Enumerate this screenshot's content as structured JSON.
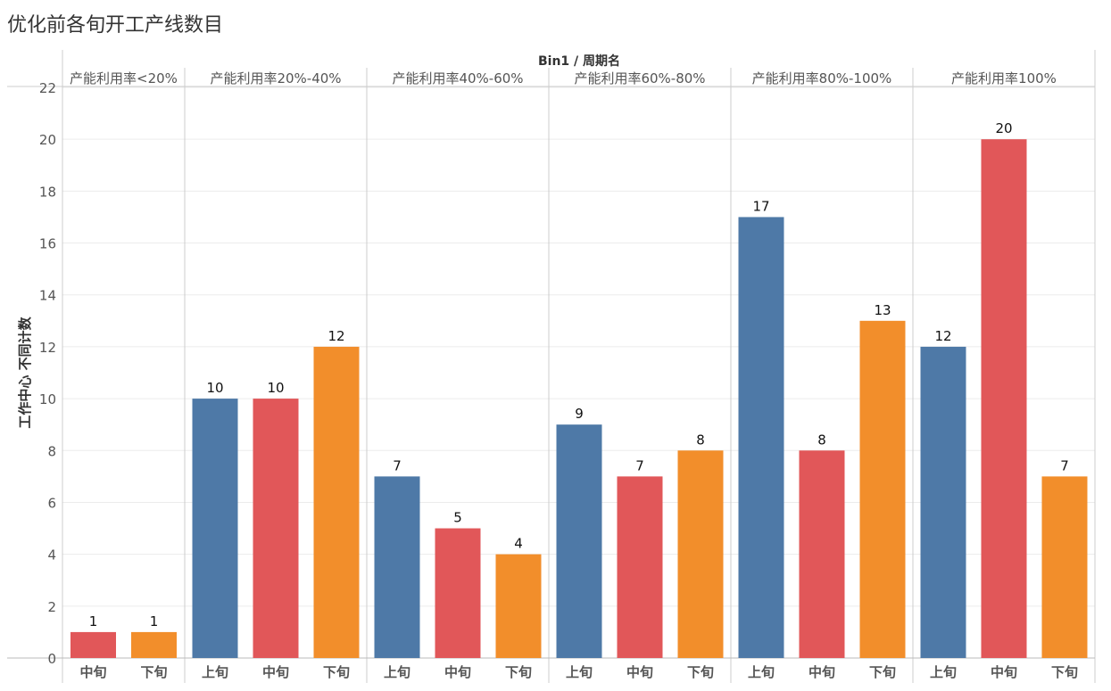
{
  "chart_data": {
    "type": "bar",
    "title": "优化前各旬开工产线数目",
    "header": "Bin1 / 周期名",
    "ylabel": "工作中心 不同计数",
    "xlabel": "",
    "ylim": [
      0,
      22
    ],
    "yticks": [
      0,
      2,
      4,
      6,
      8,
      10,
      12,
      14,
      16,
      18,
      20,
      22
    ],
    "grid": true,
    "colors": {
      "上旬": "#4e79a7",
      "中旬": "#e15759",
      "下旬": "#f28e2b"
    },
    "panels": [
      {
        "label": "产能利用率<20%",
        "bars": [
          {
            "category": "中旬",
            "value": 1
          },
          {
            "category": "下旬",
            "value": 1
          }
        ]
      },
      {
        "label": "产能利用率20%-40%",
        "bars": [
          {
            "category": "上旬",
            "value": 10
          },
          {
            "category": "中旬",
            "value": 10
          },
          {
            "category": "下旬",
            "value": 12
          }
        ]
      },
      {
        "label": "产能利用率40%-60%",
        "bars": [
          {
            "category": "上旬",
            "value": 7
          },
          {
            "category": "中旬",
            "value": 5
          },
          {
            "category": "下旬",
            "value": 4
          }
        ]
      },
      {
        "label": "产能利用率60%-80%",
        "bars": [
          {
            "category": "上旬",
            "value": 9
          },
          {
            "category": "中旬",
            "value": 7
          },
          {
            "category": "下旬",
            "value": 8
          }
        ]
      },
      {
        "label": "产能利用率80%-100%",
        "bars": [
          {
            "category": "上旬",
            "value": 17
          },
          {
            "category": "中旬",
            "value": 8
          },
          {
            "category": "下旬",
            "value": 13
          }
        ]
      },
      {
        "label": "产能利用率100%",
        "bars": [
          {
            "category": "上旬",
            "value": 12
          },
          {
            "category": "中旬",
            "value": 20
          },
          {
            "category": "下旬",
            "value": 7
          }
        ]
      }
    ]
  }
}
